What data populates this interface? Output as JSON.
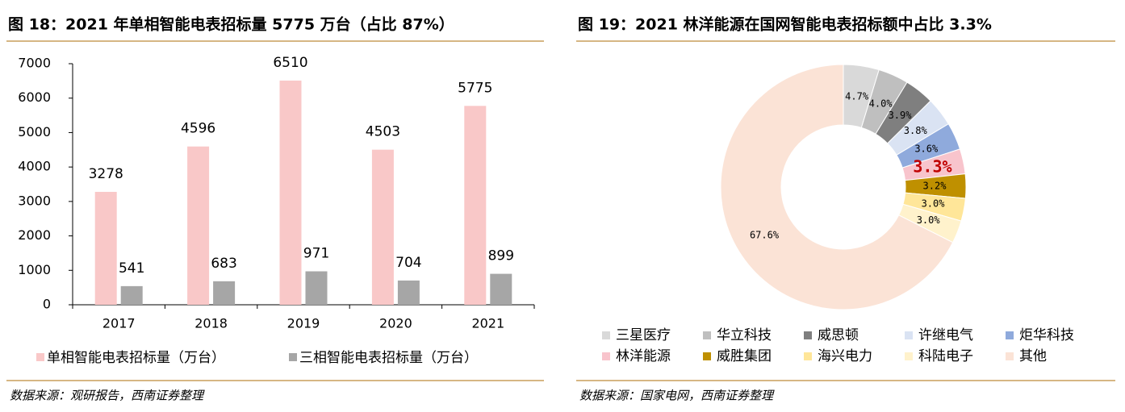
{
  "chart_data": [
    {
      "type": "bar",
      "title": "图 18：2021 年单相智能电表招标量 5775 万台（占比 87%）",
      "source": "数据来源：观研报告，西南证券整理",
      "categories": [
        "2017",
        "2018",
        "2019",
        "2020",
        "2021"
      ],
      "series": [
        {
          "name": "单相智能电表招标量（万台）",
          "color": "#f9c8c8",
          "values": [
            3278,
            4596,
            6510,
            4503,
            5775
          ]
        },
        {
          "name": "三相智能电表招标量（万台）",
          "color": "#a6a6a6",
          "values": [
            541,
            683,
            971,
            704,
            899
          ]
        }
      ],
      "ylim": [
        0,
        7000
      ],
      "yticks": [
        0,
        1000,
        2000,
        3000,
        4000,
        5000,
        6000,
        7000
      ],
      "grid": false
    },
    {
      "type": "donut",
      "title": "图 19：2021 林洋能源在国网智能电表招标额中占比 3.3%",
      "source": "数据来源：国家电网，西南证券整理",
      "categories": [
        "三星医疗",
        "华立科技",
        "威思顿",
        "许继电气",
        "炬华科技",
        "林洋能源",
        "威胜集团",
        "海兴电力",
        "科陆电子",
        "其他"
      ],
      "values": [
        4.7,
        4.0,
        3.9,
        3.8,
        3.6,
        3.3,
        3.2,
        3.0,
        3.0,
        67.6
      ],
      "value_labels": [
        "4.7%",
        "4.0%",
        "3.9%",
        "3.8%",
        "3.6%",
        "3.3%",
        "3.2%",
        "3.0%",
        "3.0%",
        "67.6%"
      ],
      "colors": [
        "#d9d9d9",
        "#bfbfbf",
        "#7f7f7f",
        "#dae3f3",
        "#8faadc",
        "#f8c4cc",
        "#bf9000",
        "#ffe699",
        "#fff2cc",
        "#fbe3d6"
      ],
      "highlight": 5,
      "highlight_color": "#c00000"
    }
  ]
}
